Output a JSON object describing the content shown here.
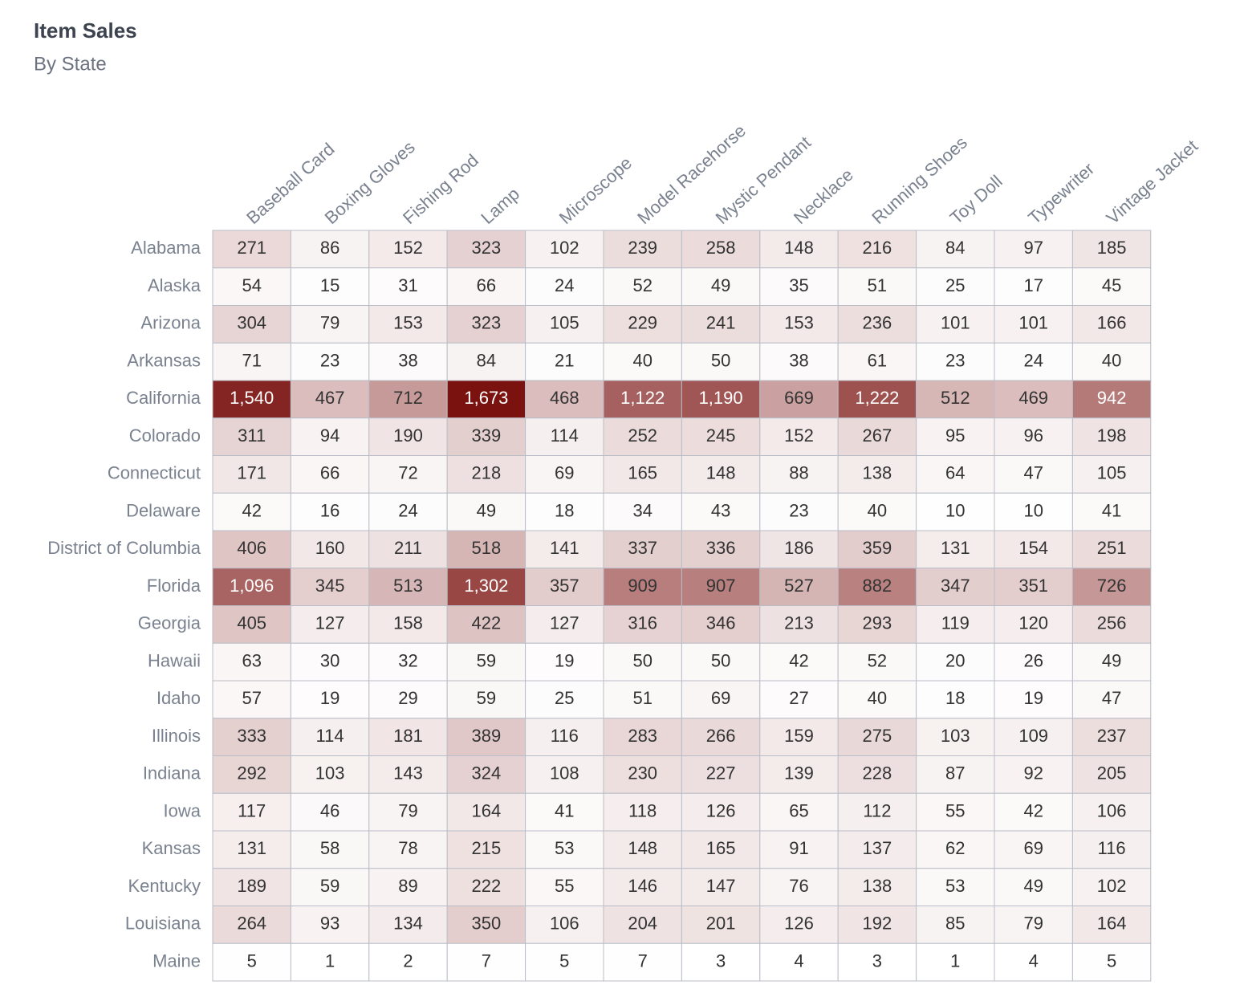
{
  "chart_data": {
    "type": "heatmap",
    "title": "Item Sales",
    "subtitle": "By State",
    "x": [
      "Baseball Card",
      "Boxing Gloves",
      "Fishing Rod",
      "Lamp",
      "Microscope",
      "Model Racehorse",
      "Mystic Pendant",
      "Necklace",
      "Running Shoes",
      "Toy Doll",
      "Typewriter",
      "Vintage Jacket"
    ],
    "y": [
      "Alabama",
      "Alaska",
      "Arizona",
      "Arkansas",
      "California",
      "Colorado",
      "Connecticut",
      "Delaware",
      "District of Columbia",
      "Florida",
      "Georgia",
      "Hawaii",
      "Idaho",
      "Illinois",
      "Indiana",
      "Iowa",
      "Kansas",
      "Kentucky",
      "Louisiana",
      "Maine"
    ],
    "values": [
      [
        271,
        86,
        152,
        323,
        102,
        239,
        258,
        148,
        216,
        84,
        97,
        185
      ],
      [
        54,
        15,
        31,
        66,
        24,
        52,
        49,
        35,
        51,
        25,
        17,
        45
      ],
      [
        304,
        79,
        153,
        323,
        105,
        229,
        241,
        153,
        236,
        101,
        101,
        166
      ],
      [
        71,
        23,
        38,
        84,
        21,
        40,
        50,
        38,
        61,
        23,
        24,
        40
      ],
      [
        1540,
        467,
        712,
        1673,
        468,
        1122,
        1190,
        669,
        1222,
        512,
        469,
        942
      ],
      [
        311,
        94,
        190,
        339,
        114,
        252,
        245,
        152,
        267,
        95,
        96,
        198
      ],
      [
        171,
        66,
        72,
        218,
        69,
        165,
        148,
        88,
        138,
        64,
        47,
        105
      ],
      [
        42,
        16,
        24,
        49,
        18,
        34,
        43,
        23,
        40,
        10,
        10,
        41
      ],
      [
        406,
        160,
        211,
        518,
        141,
        337,
        336,
        186,
        359,
        131,
        154,
        251
      ],
      [
        1096,
        345,
        513,
        1302,
        357,
        909,
        907,
        527,
        882,
        347,
        351,
        726
      ],
      [
        405,
        127,
        158,
        422,
        127,
        316,
        346,
        213,
        293,
        119,
        120,
        256
      ],
      [
        63,
        30,
        32,
        59,
        19,
        50,
        50,
        42,
        52,
        20,
        26,
        49
      ],
      [
        57,
        19,
        29,
        59,
        25,
        51,
        69,
        27,
        40,
        18,
        19,
        47
      ],
      [
        333,
        114,
        181,
        389,
        116,
        283,
        266,
        159,
        275,
        103,
        109,
        237
      ],
      [
        292,
        103,
        143,
        324,
        108,
        230,
        227,
        139,
        228,
        87,
        92,
        205
      ],
      [
        117,
        46,
        79,
        164,
        41,
        118,
        126,
        65,
        112,
        55,
        42,
        106
      ],
      [
        131,
        58,
        78,
        215,
        53,
        148,
        165,
        91,
        137,
        62,
        69,
        116
      ],
      [
        189,
        59,
        89,
        222,
        55,
        146,
        147,
        76,
        138,
        53,
        49,
        102
      ],
      [
        264,
        93,
        134,
        350,
        106,
        204,
        201,
        126,
        192,
        85,
        79,
        164
      ],
      [
        5,
        1,
        2,
        7,
        5,
        7,
        3,
        4,
        3,
        1,
        4,
        5
      ]
    ],
    "value_labels": {
      "4": {
        "0": "1,540",
        "3": "1,673",
        "5": "1,122",
        "6": "1,190",
        "8": "1,222"
      },
      "9": {
        "0": "1,096",
        "3": "1,302"
      }
    },
    "color_low": "#ffffff",
    "color_high": "#7a1210"
  }
}
